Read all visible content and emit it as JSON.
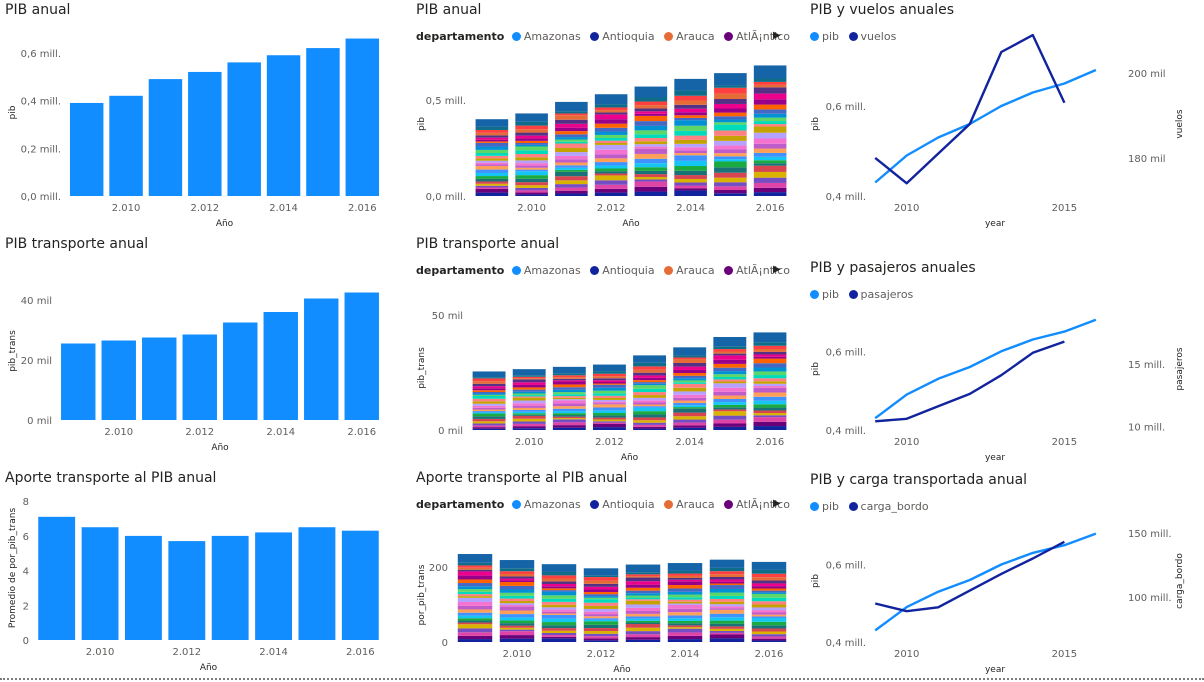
{
  "colors": {
    "bar": "#118DFF",
    "line_pib": "#118DFF",
    "line_dark": "#12239E",
    "axis_text": "#605e5c",
    "grid": "#e6e6e6"
  },
  "legend": {
    "title": "departamento",
    "items": [
      {
        "name": "Amazonas",
        "color": "#118DFF"
      },
      {
        "name": "Antioquia",
        "color": "#12239E"
      },
      {
        "name": "Arauca",
        "color": "#E66C37"
      },
      {
        "name": "AtlÃ¡ntico",
        "color": "#6B007B"
      }
    ],
    "more_icon": "caret-right-icon"
  },
  "stack_palette": [
    "#12239E",
    "#6B007B",
    "#E044A7",
    "#744EC2",
    "#D9B300",
    "#D64550",
    "#197278",
    "#1AAB40",
    "#15C6F4",
    "#4092FF",
    "#FFA058",
    "#BE5DC9",
    "#F472D0",
    "#B5A1FF",
    "#C4A200",
    "#FF8080",
    "#00DBBC",
    "#5BD667",
    "#0091D5",
    "#4668C5",
    "#FF6300",
    "#99008A",
    "#EC008C",
    "#533285",
    "#E66C37",
    "#FF4040",
    "#0E6E8A"
  ],
  "stack_top_color": "#1664A8",
  "charts": [
    {
      "id": "pib-anual",
      "title": "PIB anual",
      "chart_data": {
        "type": "bar",
        "x": [
          2009,
          2010,
          2011,
          2012,
          2013,
          2014,
          2015,
          2016
        ],
        "values": [
          0.39,
          0.42,
          0.49,
          0.52,
          0.56,
          0.59,
          0.62,
          0.66
        ],
        "ylim": [
          0,
          0.7
        ],
        "yticks": [
          0,
          0.2,
          0.4,
          0.6
        ],
        "ytick_labels": [
          "0,0 mill.",
          "0,2 mill.",
          "0,4 mill.",
          "0,6 mill."
        ],
        "xticks": [
          "2.010",
          "2.012",
          "2.014",
          "2.016"
        ],
        "xlabel": "Año",
        "ylabel": "pib"
      }
    },
    {
      "id": "pib-anual-dept",
      "title": "PIB anual",
      "chart_data": {
        "type": "stacked_bar",
        "x": [
          2009,
          2010,
          2011,
          2012,
          2013,
          2014,
          2015,
          2016
        ],
        "values": [
          0.4,
          0.43,
          0.49,
          0.53,
          0.57,
          0.61,
          0.64,
          0.68
        ],
        "ylim": [
          0,
          0.75
        ],
        "yticks": [
          0,
          0.5
        ],
        "ytick_labels": [
          "0,0 mill.",
          "0,5 mill."
        ],
        "xticks": [
          "2.010",
          "2.012",
          "2.014",
          "2.016"
        ],
        "xlabel": "Año",
        "ylabel": "pib"
      }
    },
    {
      "id": "pib-vuelos",
      "title": "PIB y vuelos anuales",
      "legend": [
        "pib",
        "vuelos"
      ],
      "chart_data": {
        "type": "line",
        "x": [
          2009,
          2010,
          2011,
          2012,
          2013,
          2014,
          2015,
          2016
        ],
        "xlim": [
          2008.9,
          2016.7
        ],
        "series": [
          {
            "name": "pib",
            "axis": "left",
            "values": [
              0.43,
              0.49,
              0.53,
              0.56,
              0.6,
              0.63,
              0.65,
              0.68
            ]
          },
          {
            "name": "vuelos",
            "axis": "right",
            "values": [
              180,
              174,
              181,
              188,
              205,
              209,
              193,
              null
            ]
          }
        ],
        "left_ylim": [
          0.4,
          0.72
        ],
        "right_ylim": [
          171,
          205
        ],
        "left_ticks": [
          0.4,
          0.6
        ],
        "left_tick_labels": [
          "0,4 mill.",
          "0,6 mill."
        ],
        "right_ticks": [
          180,
          200
        ],
        "right_tick_labels": [
          "180 mil",
          "200 mil"
        ],
        "xticks": [
          2010,
          2015
        ],
        "xtick_labels": [
          "2010",
          "2015"
        ],
        "xlabel": "year",
        "ylabel_left": "pib",
        "ylabel_right": "vuelos"
      }
    },
    {
      "id": "pib-transporte",
      "title": "PIB transporte anual",
      "chart_data": {
        "type": "bar",
        "x": [
          2009,
          2010,
          2011,
          2012,
          2013,
          2014,
          2015,
          2016
        ],
        "values": [
          25500,
          26500,
          27500,
          28500,
          32500,
          36000,
          40500,
          42500
        ],
        "ylim": [
          0,
          46000
        ],
        "yticks": [
          0,
          20000,
          40000
        ],
        "ytick_labels": [
          "0 mil",
          "20 mil",
          "40 mil"
        ],
        "xticks": [
          "2.010",
          "2.012",
          "2.014",
          "2.016"
        ],
        "xlabel": "Año",
        "ylabel": "pib_trans"
      }
    },
    {
      "id": "pib-transporte-dept",
      "title": "PIB transporte anual",
      "chart_data": {
        "type": "stacked_bar",
        "x": [
          2009,
          2010,
          2011,
          2012,
          2013,
          2014,
          2015,
          2016
        ],
        "values": [
          25500,
          26500,
          27500,
          28500,
          32500,
          36000,
          40500,
          42500
        ],
        "ylim": [
          0,
          54000
        ],
        "yticks": [
          0,
          50000
        ],
        "ytick_labels": [
          "0 mil",
          "50 mil"
        ],
        "xticks": [
          "2.010",
          "2.012",
          "2.014",
          "2.016"
        ],
        "xlabel": "Año",
        "ylabel": "pib_trans"
      }
    },
    {
      "id": "pib-pasajeros",
      "title": "PIB y pasajeros anuales",
      "legend": [
        "pib",
        "pasajeros"
      ],
      "chart_data": {
        "type": "line",
        "x": [
          2009,
          2010,
          2011,
          2012,
          2013,
          2014,
          2015,
          2016
        ],
        "xlim": [
          2008.9,
          2016.7
        ],
        "series": [
          {
            "name": "pib",
            "axis": "left",
            "values": [
              0.43,
              0.49,
              0.53,
              0.56,
              0.6,
              0.63,
              0.65,
              0.68
            ]
          },
          {
            "name": "pasajeros",
            "axis": "right",
            "values": [
              10.4,
              10.6,
              11.6,
              12.6,
              14.1,
              15.9,
              16.8,
              null
            ]
          }
        ],
        "left_ylim": [
          0.4,
          0.71
        ],
        "right_ylim": [
          9.7,
          19.5
        ],
        "left_ticks": [
          0.4,
          0.6
        ],
        "left_tick_labels": [
          "0,4 mill.",
          "0,6 mill."
        ],
        "right_ticks": [
          10,
          15
        ],
        "right_tick_labels": [
          "10 mill.",
          "15 mill."
        ],
        "xticks": [
          2010,
          2015
        ],
        "xtick_labels": [
          "2010",
          "2015"
        ],
        "xlabel": "year",
        "ylabel_left": "pib",
        "ylabel_right": "pasajeros"
      }
    },
    {
      "id": "aporte-transporte",
      "title": "Aporte transporte al PIB anual",
      "chart_data": {
        "type": "bar",
        "x": [
          2009,
          2010,
          2011,
          2012,
          2013,
          2014,
          2015,
          2016
        ],
        "values": [
          7.1,
          6.5,
          6.0,
          5.7,
          6.0,
          6.2,
          6.5,
          6.3
        ],
        "ylim": [
          0,
          8.3
        ],
        "yticks": [
          0,
          2,
          4,
          6,
          8
        ],
        "ytick_labels": [
          "0",
          "2",
          "4",
          "6",
          "8"
        ],
        "xticks": [
          "2.010",
          "2.012",
          "2.014",
          "2.016"
        ],
        "xlabel": "Año",
        "ylabel": "Promedio de por_pib_trans"
      }
    },
    {
      "id": "aporte-transporte-dept",
      "title": "Aporte transporte al PIB anual",
      "chart_data": {
        "type": "stacked_bar",
        "x": [
          2009,
          2010,
          2011,
          2012,
          2013,
          2014,
          2015,
          2016
        ],
        "values": [
          234,
          218,
          207,
          196,
          206,
          210,
          219,
          213
        ],
        "ylim": [
          0,
          250
        ],
        "yticks": [
          0,
          200
        ],
        "ytick_labels": [
          "0",
          "200"
        ],
        "xticks": [
          "2.010",
          "2.012",
          "2.014",
          "2.016"
        ],
        "xlabel": "Año",
        "ylabel": "por_pib_trans"
      }
    },
    {
      "id": "pib-carga",
      "title": "PIB y carga transportada anual",
      "legend": [
        "pib",
        "carga_bordo"
      ],
      "chart_data": {
        "type": "line",
        "x": [
          2009,
          2010,
          2011,
          2012,
          2013,
          2014,
          2015,
          2016
        ],
        "xlim": [
          2008.9,
          2016.7
        ],
        "series": [
          {
            "name": "pib",
            "axis": "left",
            "values": [
              0.43,
              0.49,
              0.53,
              0.56,
              0.6,
              0.63,
              0.65,
              0.68
            ]
          },
          {
            "name": "carga_bordo",
            "axis": "right",
            "values": [
              95,
              89,
              92,
              105,
              118,
              130,
              143,
              null
            ]
          }
        ],
        "left_ylim": [
          0.4,
          0.715
        ],
        "right_ylim": [
          65,
          160
        ],
        "left_ticks": [
          0.4,
          0.6
        ],
        "left_tick_labels": [
          "0,4 mill.",
          "0,6 mill."
        ],
        "right_ticks": [
          100,
          150
        ],
        "right_tick_labels": [
          "100 mill.",
          "150 mill."
        ],
        "xticks": [
          2010,
          2015
        ],
        "xtick_labels": [
          "2010",
          "2015"
        ],
        "xlabel": "year",
        "ylabel_left": "pib",
        "ylabel_right": "carga_bordo"
      }
    }
  ]
}
